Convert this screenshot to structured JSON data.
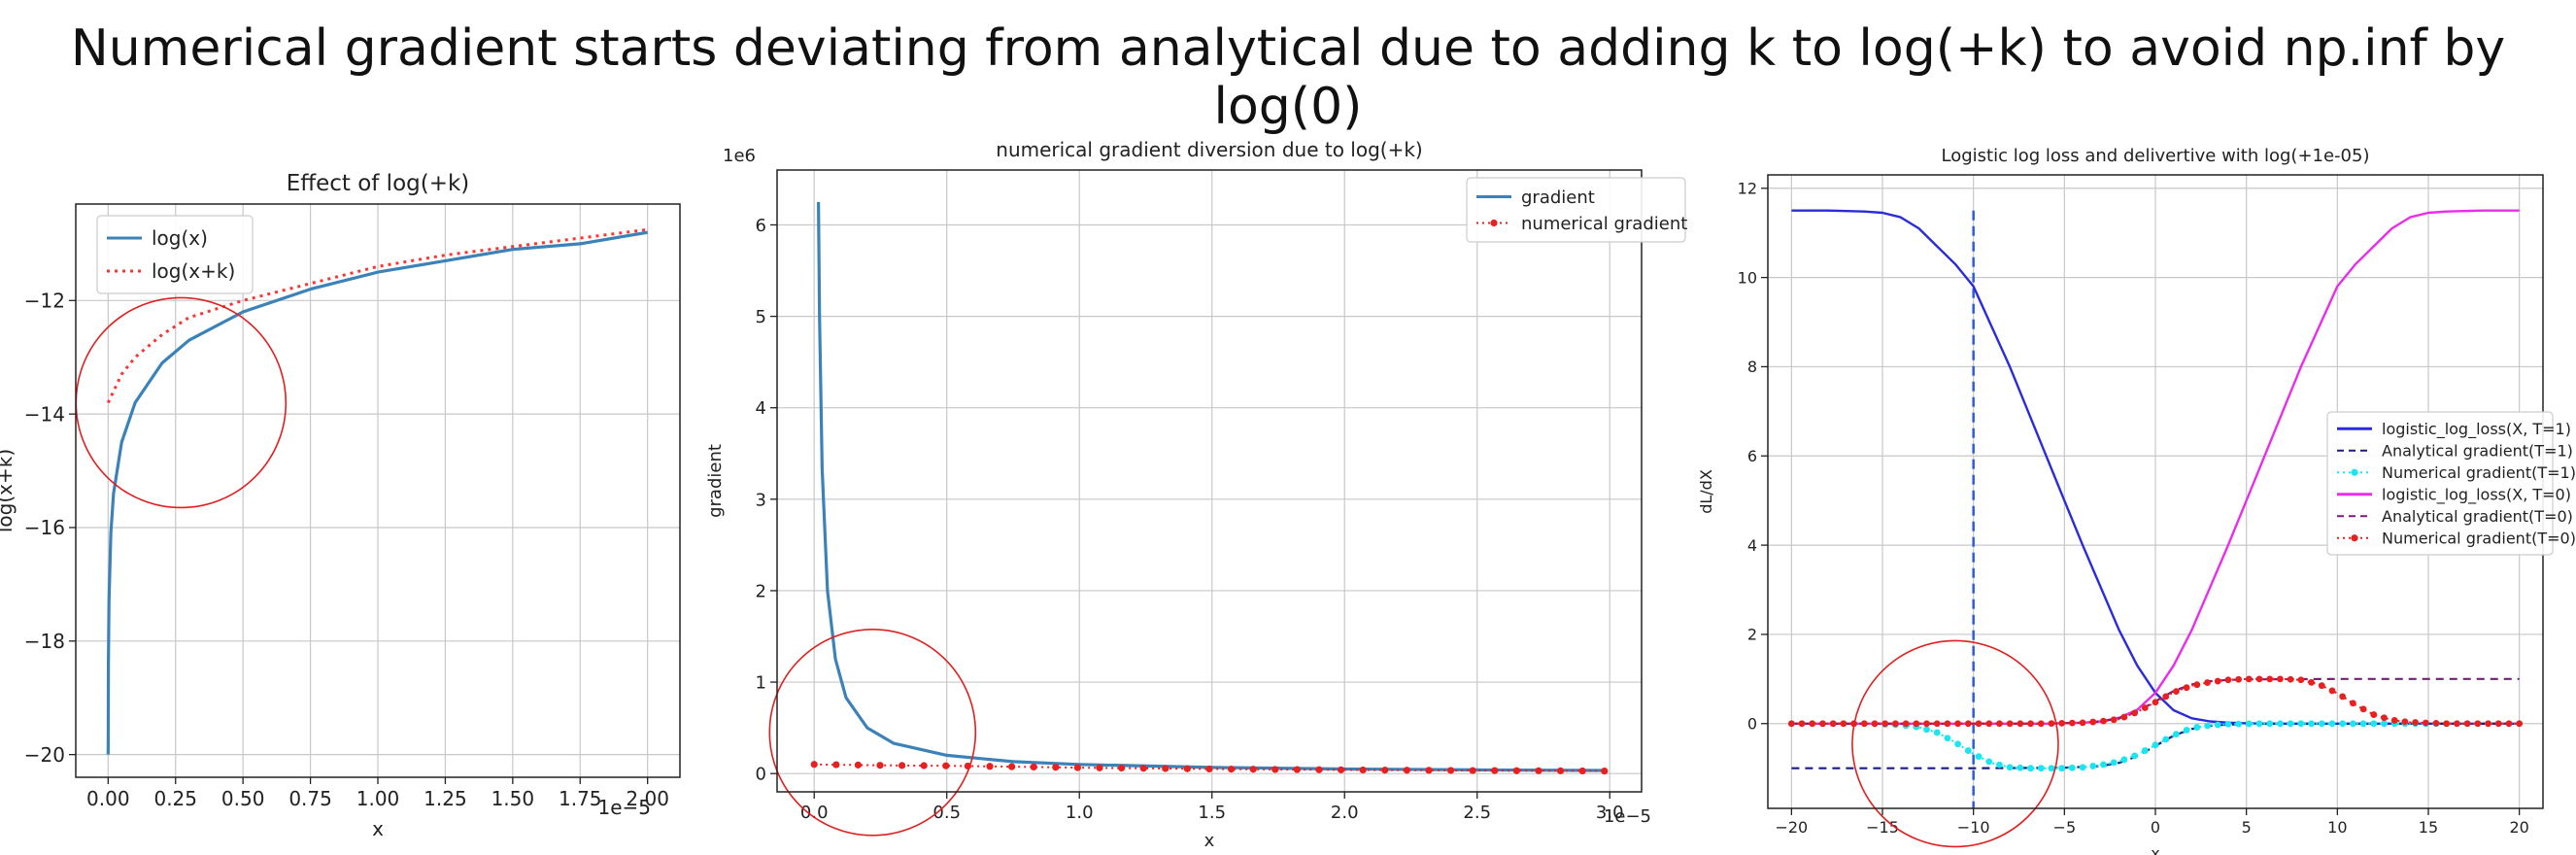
{
  "slide_title": "Numerical gradient starts deviating from analytical due to adding k to log(+k) to avoid np.inf by log(0)",
  "chart_data": [
    {
      "type": "line",
      "title": "Effect of log(+k)",
      "xlabel": "x",
      "ylabel": "log(x+k)",
      "x_offset_label": "1e−5",
      "xlim": [
        -0.12,
        2.12
      ],
      "ylim": [
        -20.4,
        -10.3
      ],
      "xticks": [
        0,
        0.25,
        0.5,
        0.75,
        1.0,
        1.25,
        1.5,
        1.75,
        2.0
      ],
      "xtick_labels": [
        "0.00",
        "0.25",
        "0.50",
        "0.75",
        "1.00",
        "1.25",
        "1.50",
        "1.75",
        "2.00"
      ],
      "yticks": [
        -20,
        -18,
        -16,
        -14,
        -12
      ],
      "ytick_labels": [
        "−20",
        "−18",
        "−16",
        "−14",
        "−12"
      ],
      "grid": true,
      "legend_position": "top-left",
      "series": [
        {
          "name": "log(x)",
          "color": "#3b82b8",
          "style": "solid",
          "x": [
            0.0001,
            0.0003,
            0.001,
            0.003,
            0.01,
            0.02,
            0.05,
            0.1,
            0.2,
            0.3,
            0.5,
            0.75,
            1.0,
            1.25,
            1.5,
            1.75,
            2.0
          ],
          "y": [
            -20.0,
            -19.8,
            -18.4,
            -17.3,
            -16.1,
            -15.4,
            -14.5,
            -13.8,
            -13.1,
            -12.7,
            -12.2,
            -11.8,
            -11.5,
            -11.3,
            -11.1,
            -11.0,
            -10.8
          ]
        },
        {
          "name": "log(x+k)",
          "color": "#ff3333",
          "style": "dotted",
          "x": [
            0.0,
            0.05,
            0.1,
            0.2,
            0.3,
            0.5,
            0.75,
            1.0,
            1.25,
            1.5,
            1.75,
            2.0
          ],
          "y": [
            -13.8,
            -13.3,
            -13.0,
            -12.6,
            -12.3,
            -12.0,
            -11.7,
            -11.4,
            -11.2,
            -11.05,
            -10.9,
            -10.75
          ]
        }
      ],
      "annotation": {
        "shape": "circle",
        "color": "#e02020",
        "cx": 0.27,
        "cy": -13.8
      }
    },
    {
      "type": "line",
      "title": "numerical gradient diversion due to log(+k)",
      "xlabel": "x",
      "ylabel": "gradient",
      "x_offset_label": "1e−5",
      "y_offset_label": "1e6",
      "xlim": [
        -0.14,
        3.12
      ],
      "ylim": [
        -0.2,
        6.6
      ],
      "xticks": [
        0,
        0.5,
        1.0,
        1.5,
        2.0,
        2.5,
        3.0
      ],
      "xtick_labels": [
        "0.0",
        "0.5",
        "1.0",
        "1.5",
        "2.0",
        "2.5",
        "3.0"
      ],
      "yticks": [
        0,
        1,
        2,
        3,
        4,
        5,
        6
      ],
      "ytick_labels": [
        "0",
        "1",
        "2",
        "3",
        "4",
        "5",
        "6"
      ],
      "grid": true,
      "legend_position": "top-right",
      "series": [
        {
          "name": "gradient",
          "color": "#3b82b8",
          "style": "solid",
          "x": [
            0.016,
            0.02,
            0.03,
            0.05,
            0.08,
            0.12,
            0.2,
            0.3,
            0.5,
            0.75,
            1.0,
            1.5,
            2.0,
            2.5,
            2.98
          ],
          "y": [
            6.25,
            5.0,
            3.33,
            2.0,
            1.25,
            0.83,
            0.5,
            0.33,
            0.2,
            0.13,
            0.1,
            0.067,
            0.05,
            0.04,
            0.034
          ]
        },
        {
          "name": "numerical gradient",
          "color": "#e82020",
          "style": "dotted-markers",
          "x": [
            0.0,
            0.25,
            0.5,
            0.75,
            1.0,
            1.5,
            2.0,
            2.5,
            2.98
          ],
          "y": [
            0.1,
            0.09,
            0.085,
            0.075,
            0.065,
            0.05,
            0.04,
            0.033,
            0.028
          ]
        }
      ],
      "annotation": {
        "shape": "circle",
        "color": "#e02020",
        "cx": 0.22,
        "cy": 0.45
      }
    },
    {
      "type": "line",
      "title": "Logistic log loss and delivertive with log(+1e-05)",
      "xlabel": "x",
      "ylabel": "dL/dX",
      "xlim": [
        -21.3,
        21.3
      ],
      "ylim": [
        -1.9,
        12.3
      ],
      "xticks": [
        -20,
        -15,
        -10,
        -5,
        0,
        5,
        10,
        15,
        20
      ],
      "xtick_labels": [
        "−20",
        "−15",
        "−10",
        "−5",
        "0",
        "5",
        "10",
        "15",
        "20"
      ],
      "yticks": [
        0,
        2,
        4,
        6,
        8,
        10,
        12
      ],
      "ytick_labels": [
        "0",
        "2",
        "4",
        "6",
        "8",
        "10",
        "12"
      ],
      "grid": true,
      "legend_position": "center-right",
      "series": [
        {
          "name": "logistic_log_loss(X, T=1)",
          "color": "#2b2bd9",
          "style": "solid",
          "x": [
            -20,
            -18,
            -16,
            -15,
            -14,
            -13,
            -12,
            -11,
            -10,
            -9,
            -8,
            -7,
            -6,
            -5,
            -4,
            -3,
            -2,
            -1,
            0,
            1,
            2,
            3,
            4,
            5,
            6,
            8,
            10,
            15,
            20
          ],
          "y": [
            11.5,
            11.5,
            11.48,
            11.45,
            11.35,
            11.1,
            10.7,
            10.3,
            9.8,
            8.9,
            8.0,
            7.0,
            6.0,
            5.0,
            4.0,
            3.05,
            2.1,
            1.3,
            0.69,
            0.3,
            0.12,
            0.05,
            0.02,
            0.007,
            0.0,
            0.0,
            0.0,
            0.0,
            0.0
          ]
        },
        {
          "name": "Analytical gradient(T=1)",
          "color": "#1a1a80",
          "style": "dashed",
          "x": [
            -20,
            -10,
            -5,
            -3,
            -2,
            -1,
            0,
            1,
            2,
            3,
            4,
            6,
            20
          ],
          "y": [
            -1.0,
            -1.0,
            -0.99,
            -0.95,
            -0.88,
            -0.73,
            -0.5,
            -0.27,
            -0.12,
            -0.05,
            -0.02,
            0.0,
            0.0
          ]
        },
        {
          "name": "Numerical gradient(T=1)",
          "color": "#19e6f0",
          "style": "dotted-markers",
          "x": [
            -20,
            -16,
            -14,
            -13,
            -12,
            -11,
            -10,
            -9,
            -8,
            -7,
            -6,
            -5,
            -4,
            -3,
            -2,
            -1,
            0,
            1,
            2,
            3,
            4,
            6,
            10,
            20
          ],
          "y": [
            0.0,
            0.0,
            -0.03,
            -0.08,
            -0.2,
            -0.42,
            -0.68,
            -0.88,
            -0.98,
            -1.0,
            -1.0,
            -1.0,
            -0.98,
            -0.93,
            -0.85,
            -0.7,
            -0.48,
            -0.26,
            -0.1,
            -0.04,
            -0.01,
            0.0,
            0.0,
            0.0
          ]
        },
        {
          "name": "logistic_log_loss(X, T=0)",
          "color": "#e82ee8",
          "style": "solid",
          "x": [
            -20,
            -6,
            -4,
            -3,
            -2,
            -1,
            0,
            1,
            2,
            3,
            4,
            5,
            6,
            7,
            8,
            9,
            10,
            11,
            12,
            13,
            14,
            15,
            16,
            18,
            20
          ],
          "y": [
            0.0,
            0.0,
            0.02,
            0.05,
            0.13,
            0.31,
            0.69,
            1.3,
            2.1,
            3.05,
            4.0,
            5.0,
            6.0,
            7.0,
            8.0,
            8.9,
            9.8,
            10.3,
            10.7,
            11.1,
            11.35,
            11.45,
            11.48,
            11.5,
            11.5
          ]
        },
        {
          "name": "Analytical gradient(T=0)",
          "color": "#7a1a7a",
          "style": "dashed",
          "x": [
            -20,
            -6,
            -4,
            -3,
            -2,
            -1,
            0,
            1,
            2,
            3,
            4,
            5,
            10,
            20
          ],
          "y": [
            0.0,
            0.0,
            0.02,
            0.05,
            0.12,
            0.27,
            0.5,
            0.73,
            0.88,
            0.95,
            0.98,
            0.99,
            1.0,
            1.0
          ]
        },
        {
          "name": "Numerical gradient(T=0)",
          "color": "#e82020",
          "style": "dotted-markers",
          "x": [
            -20,
            -6,
            -4,
            -3,
            -2,
            -1,
            0,
            1,
            2,
            3,
            4,
            5,
            6,
            7,
            8,
            9,
            10,
            11,
            12,
            13,
            14,
            16,
            20
          ],
          "y": [
            0.0,
            0.0,
            0.02,
            0.05,
            0.1,
            0.26,
            0.48,
            0.7,
            0.85,
            0.93,
            0.98,
            1.0,
            1.0,
            1.0,
            0.98,
            0.88,
            0.68,
            0.42,
            0.2,
            0.08,
            0.03,
            0.0,
            0.0
          ]
        }
      ],
      "vline": {
        "x": -10,
        "color": "#2b5fd9",
        "style": "dashed"
      },
      "annotation": {
        "shape": "circle",
        "color": "#e02020",
        "cx": -11,
        "cy": -0.45
      }
    }
  ]
}
